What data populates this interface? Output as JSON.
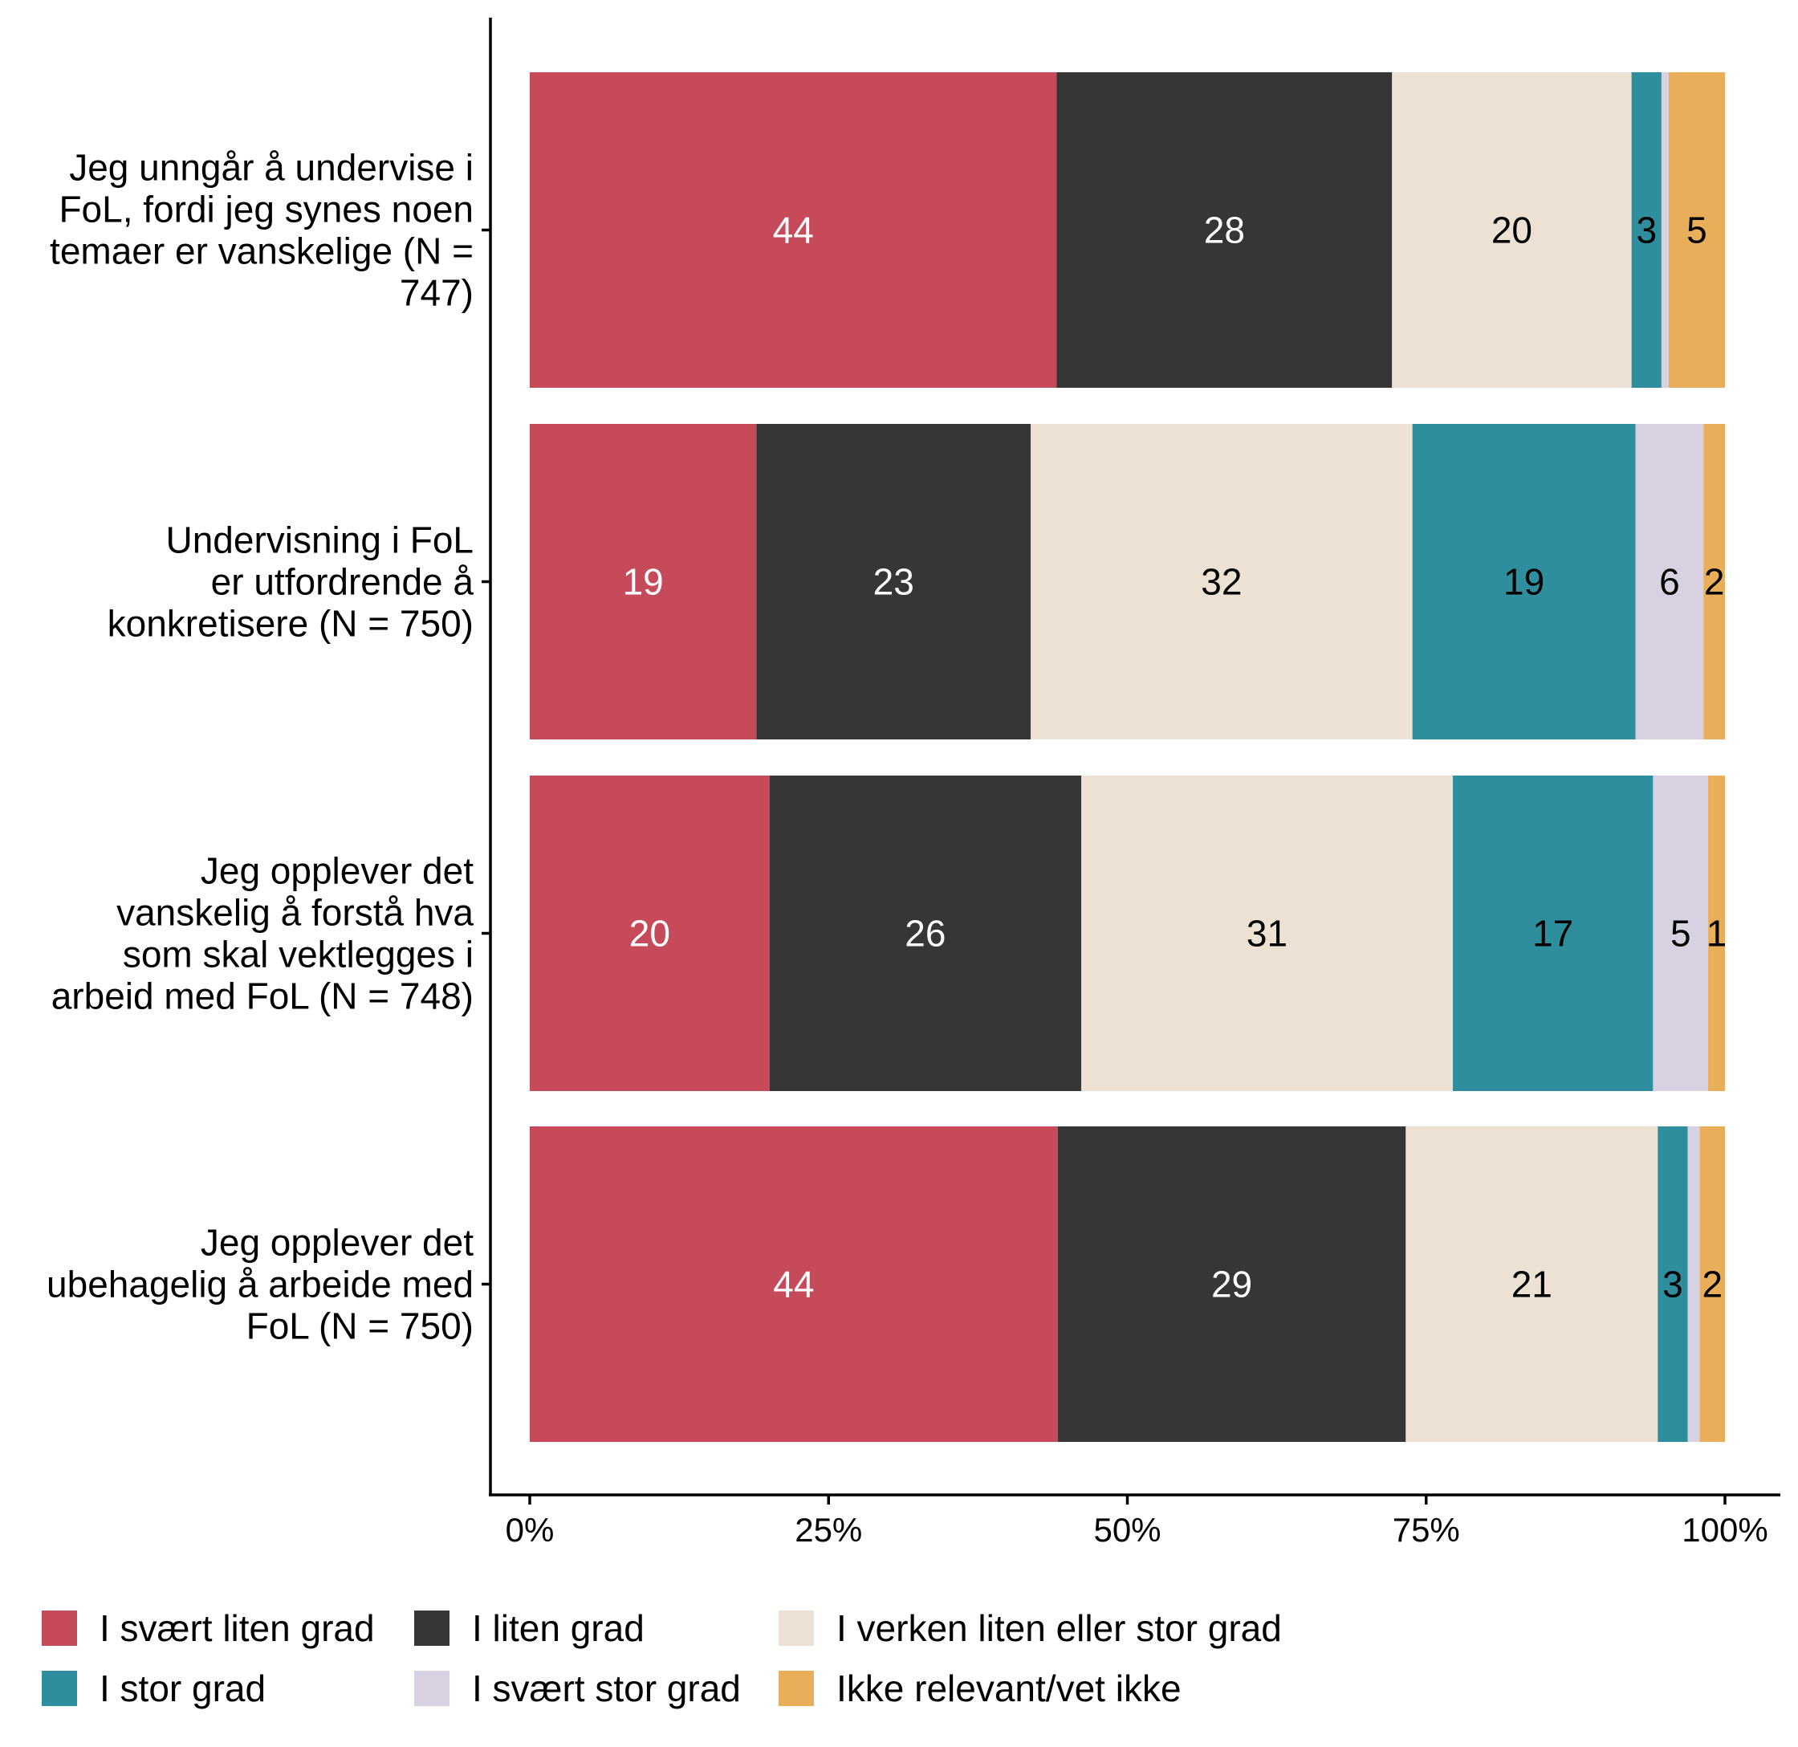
{
  "chart_data": {
    "type": "bar",
    "orientation": "horizontal",
    "stacked": true,
    "title": "",
    "xlabel": "",
    "ylabel": "",
    "xlim": [
      0,
      100
    ],
    "x_ticks": [
      "0%",
      "25%",
      "50%",
      "75%",
      "100%"
    ],
    "x_tick_values": [
      0,
      25,
      50,
      75,
      100
    ],
    "grid": false,
    "legend_position": "bottom",
    "categories": [
      [
        "Jeg unngår å undervise i",
        "FoL, fordi jeg synes noen",
        "temaer er vanskelige (N =",
        "747)"
      ],
      [
        "Undervisning i FoL",
        "er utfordrende å",
        "konkretisere (N = 750)"
      ],
      [
        "Jeg opplever det",
        "vanskelig å forstå hva",
        "som skal vektlegges i",
        "arbeid med FoL (N = 748)"
      ],
      [
        "Jeg opplever det",
        "ubehagelig å arbeide med",
        "FoL (N = 750)"
      ]
    ],
    "series": [
      {
        "name": "I svært liten grad",
        "color": "#C74A5A",
        "label_color": "#FFFFFF",
        "values": [
          44,
          19,
          20,
          44
        ],
        "labels": [
          "44",
          "19",
          "20",
          "44"
        ]
      },
      {
        "name": "I liten grad",
        "color": "#363636",
        "label_color": "#FFFFFF",
        "values": [
          28,
          23,
          26,
          29
        ],
        "labels": [
          "28",
          "23",
          "26",
          "29"
        ]
      },
      {
        "name": "I verken liten eller stor grad",
        "color": "#ECE1D3",
        "label_color": "#000000",
        "values": [
          20,
          32,
          31,
          21
        ],
        "labels": [
          "20",
          "32",
          "31",
          "21"
        ]
      },
      {
        "name": "I stor grad",
        "color": "#2E8E9E",
        "label_color": "#000000",
        "values": [
          2.5,
          18.7,
          16.7,
          2.5
        ],
        "labels": [
          "3",
          "19",
          "17",
          "3"
        ]
      },
      {
        "name": "I svært stor grad",
        "color": "#D8D1E1",
        "label_color": "#000000",
        "values": [
          0.6,
          5.7,
          4.6,
          1.0
        ],
        "labels": [
          "",
          "6",
          "5",
          ""
        ]
      },
      {
        "name": "Ikke relevant/vet ikke",
        "color": "#E8AE5A",
        "label_color": "#000000",
        "values": [
          4.7,
          1.8,
          1.4,
          2.1
        ],
        "labels": [
          "5",
          "2",
          "1",
          "2"
        ]
      }
    ],
    "legend_rows": [
      [
        "I svært liten grad",
        "I liten grad",
        "I verken liten eller stor grad"
      ],
      [
        "I stor grad",
        "I svært stor grad",
        "Ikke relevant/vet ikke"
      ]
    ]
  }
}
